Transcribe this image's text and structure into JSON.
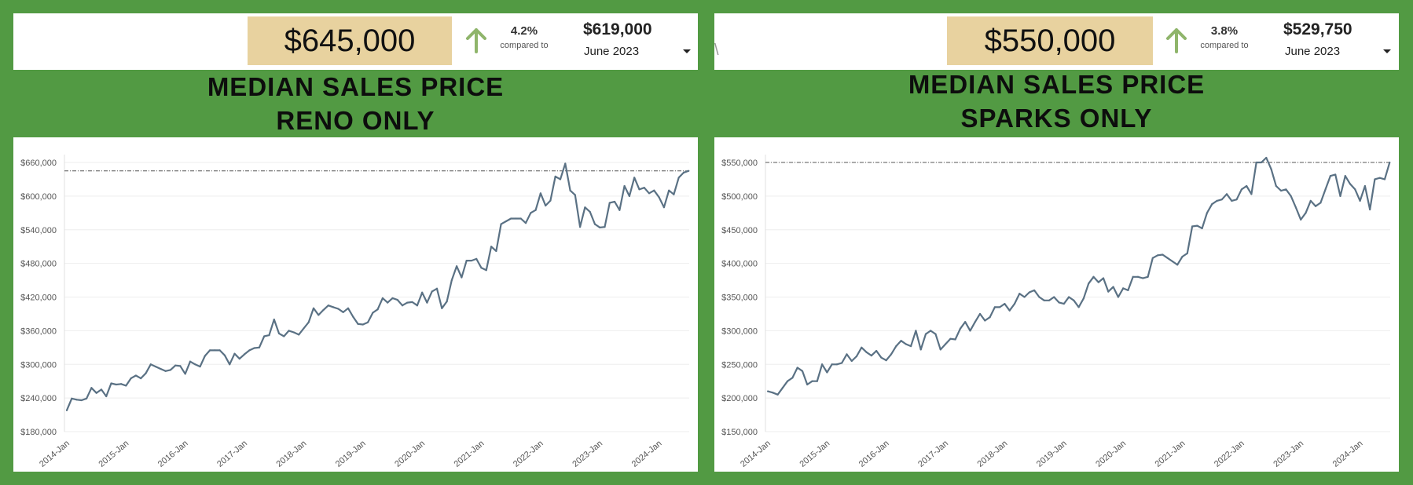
{
  "kpis": [
    {
      "value": "$645,000",
      "change_pct": "4.2%",
      "compared_to_label": "compared to",
      "compared_value": "$619,000",
      "period": "June 2023",
      "direction": "up"
    },
    {
      "value": "$550,000",
      "change_pct": "3.8%",
      "compared_to_label": "compared to",
      "compared_value": "$529,750",
      "period": "June 2023",
      "direction": "up"
    }
  ],
  "stray_glyph": "\\",
  "colors": {
    "background": "#529a43",
    "kpi_highlight": "#e8d29f",
    "arrow_up": "#8fb56b",
    "line": "#5a7184",
    "reference_line": "#555555"
  },
  "chart_data": [
    {
      "type": "line",
      "title_lines": [
        "MEDIAN SALES PRICE",
        "RENO ONLY"
      ],
      "xlabel": "",
      "ylabel": "",
      "x_start": "2014-Jan",
      "x_ticks": [
        "2014-Jan",
        "2015-Jan",
        "2016-Jan",
        "2017-Jan",
        "2018-Jan",
        "2019-Jan",
        "2020-Jan",
        "2021-Jan",
        "2022-Jan",
        "2023-Jan",
        "2024-Jan"
      ],
      "y_ticks": [
        "$180,000",
        "$240,000",
        "$300,000",
        "$360,000",
        "$420,000",
        "$480,000",
        "$540,000",
        "$600,000",
        "$660,000"
      ],
      "ylim": [
        180000,
        660000
      ],
      "reference_line": 645000,
      "grid": true,
      "values": [
        218000,
        239000,
        237000,
        236000,
        239000,
        258000,
        249000,
        255000,
        243000,
        266000,
        264000,
        265000,
        262000,
        275000,
        280000,
        275000,
        284000,
        300000,
        296000,
        292000,
        288000,
        290000,
        298000,
        297000,
        283000,
        305000,
        300000,
        296000,
        315000,
        325000,
        325000,
        325000,
        316000,
        300000,
        319000,
        310000,
        318000,
        325000,
        329000,
        330000,
        350000,
        352000,
        380000,
        355000,
        350000,
        360000,
        357000,
        353000,
        364000,
        375000,
        400000,
        388000,
        397000,
        405000,
        402000,
        399000,
        393000,
        400000,
        385000,
        372000,
        371000,
        375000,
        392000,
        398000,
        418000,
        410000,
        418000,
        415000,
        405000,
        410000,
        411000,
        405000,
        428000,
        410000,
        430000,
        435000,
        400000,
        412000,
        450000,
        475000,
        455000,
        485000,
        485000,
        488000,
        472000,
        468000,
        510000,
        502000,
        550000,
        555000,
        560000,
        560000,
        560000,
        552000,
        570000,
        575000,
        605000,
        583000,
        592000,
        635000,
        630000,
        658000,
        610000,
        602000,
        545000,
        580000,
        572000,
        550000,
        544000,
        545000,
        588000,
        590000,
        575000,
        618000,
        600000,
        633000,
        612000,
        615000,
        605000,
        610000,
        598000,
        580000,
        610000,
        603000,
        633000,
        642000,
        645000
      ]
    },
    {
      "type": "line",
      "title_lines": [
        "MEDIAN SALES PRICE",
        "SPARKS ONLY"
      ],
      "xlabel": "",
      "ylabel": "",
      "x_start": "2014-Jan",
      "x_ticks": [
        "2014-Jan",
        "2015-Jan",
        "2016-Jan",
        "2017-Jan",
        "2018-Jan",
        "2019-Jan",
        "2020-Jan",
        "2021-Jan",
        "2022-Jan",
        "2023-Jan",
        "2024-Jan"
      ],
      "y_ticks": [
        "$150,000",
        "$200,000",
        "$250,000",
        "$300,000",
        "$350,000",
        "$400,000",
        "$450,000",
        "$500,000",
        "$550,000"
      ],
      "ylim": [
        150000,
        550000
      ],
      "reference_line": 550000,
      "grid": true,
      "values": [
        210000,
        208000,
        205000,
        215000,
        225000,
        230000,
        245000,
        240000,
        220000,
        225000,
        225000,
        250000,
        238000,
        250000,
        250000,
        252000,
        265000,
        255000,
        262000,
        275000,
        268000,
        263000,
        270000,
        260000,
        256000,
        265000,
        277000,
        285000,
        280000,
        277000,
        300000,
        272000,
        295000,
        300000,
        295000,
        272000,
        280000,
        288000,
        287000,
        303000,
        313000,
        300000,
        313000,
        325000,
        315000,
        320000,
        335000,
        335000,
        340000,
        330000,
        340000,
        355000,
        350000,
        357000,
        360000,
        350000,
        345000,
        345000,
        350000,
        342000,
        340000,
        350000,
        345000,
        335000,
        348000,
        370000,
        380000,
        372000,
        378000,
        358000,
        365000,
        350000,
        363000,
        360000,
        380000,
        380000,
        378000,
        380000,
        408000,
        412000,
        413000,
        408000,
        403000,
        398000,
        410000,
        415000,
        455000,
        456000,
        452000,
        475000,
        488000,
        493000,
        495000,
        503000,
        493000,
        495000,
        510000,
        515000,
        503000,
        550000,
        550000,
        557000,
        540000,
        515000,
        508000,
        510000,
        500000,
        483000,
        465000,
        475000,
        493000,
        485000,
        490000,
        510000,
        530000,
        532000,
        500000,
        530000,
        518000,
        510000,
        493000,
        515000,
        480000,
        525000,
        527000,
        525000,
        550000
      ]
    }
  ]
}
